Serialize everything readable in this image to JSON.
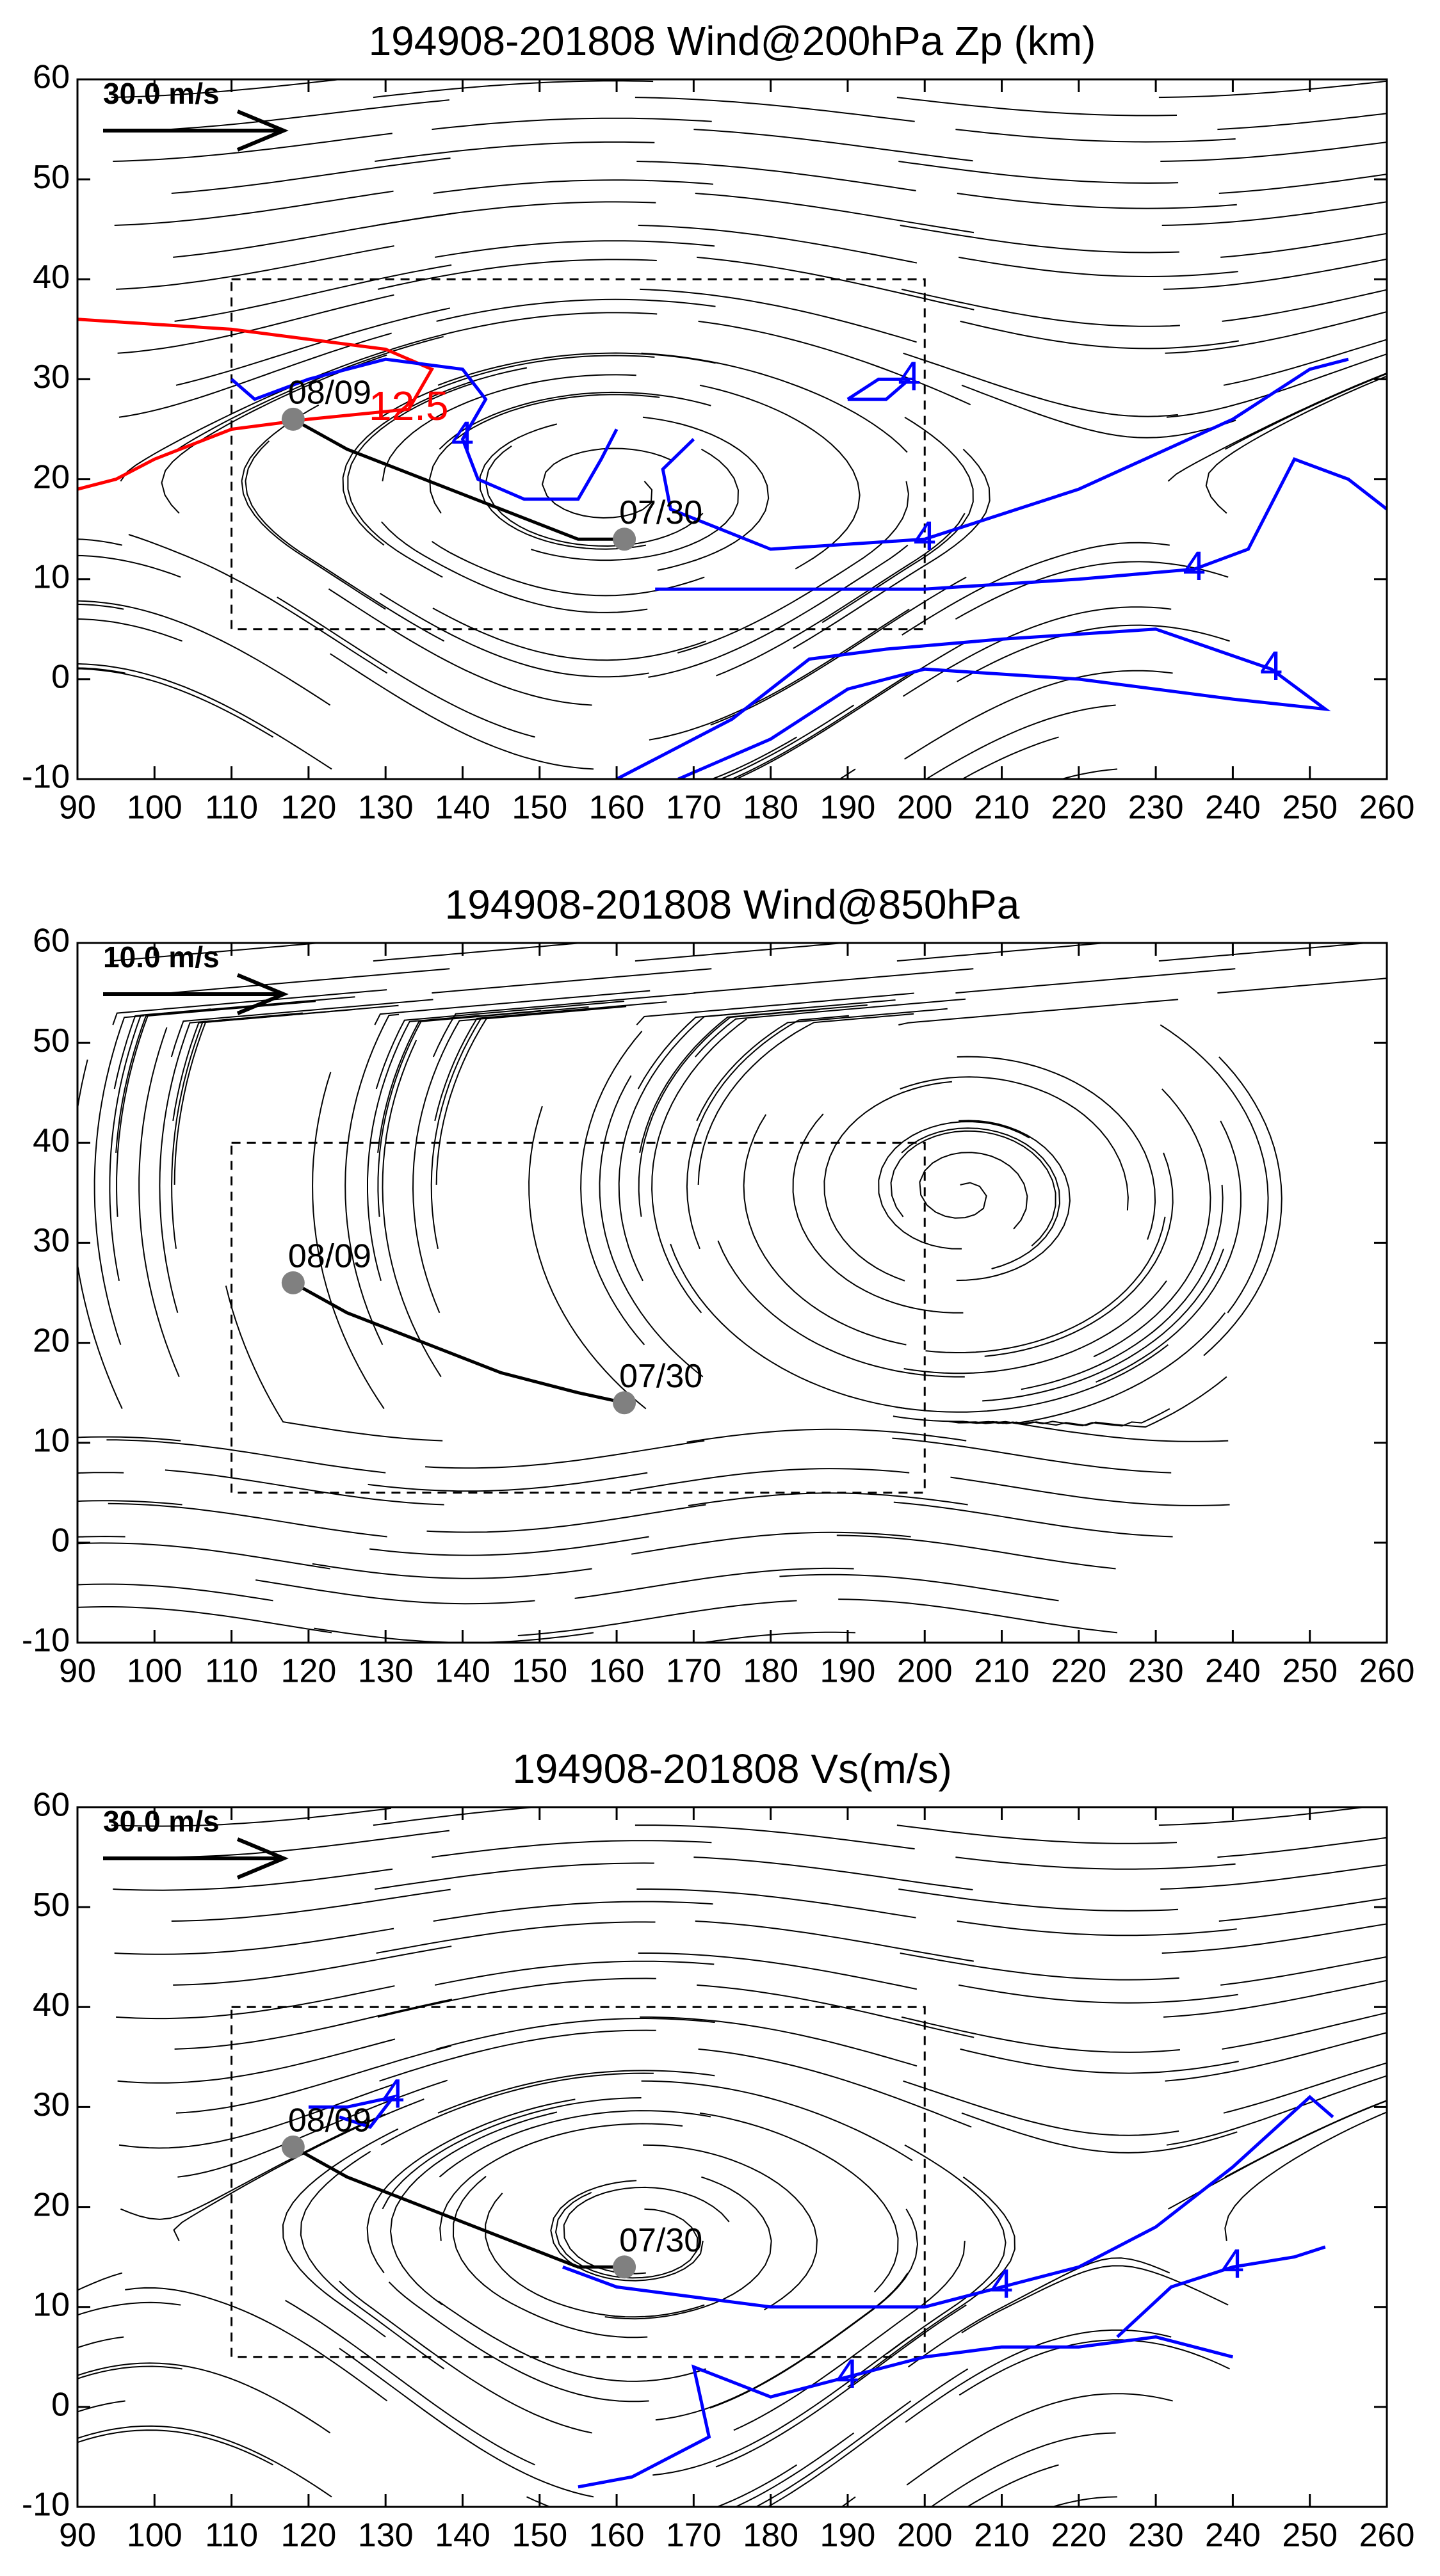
{
  "chart_data": [
    {
      "type": "vector",
      "title": "194908-201808 Wind@200hPa Zp (km)",
      "xlim": [
        90,
        260
      ],
      "xticks": [
        90,
        100,
        110,
        120,
        130,
        140,
        150,
        160,
        170,
        180,
        190,
        200,
        210,
        220,
        230,
        240,
        250,
        260
      ],
      "ylim": [
        -10,
        60
      ],
      "yticks": [
        -10,
        0,
        10,
        20,
        30,
        40,
        50,
        60
      ],
      "reference_vector": "30.0 m/s",
      "box": {
        "x": [
          110,
          200
        ],
        "y": [
          5,
          40
        ]
      },
      "track": {
        "x": [
          161,
          155,
          145,
          135,
          125,
          118
        ],
        "y": [
          14,
          14,
          17,
          20,
          23,
          26
        ],
        "labels": [
          "07/30",
          null,
          null,
          null,
          null,
          "08/09"
        ]
      },
      "contours": [
        {
          "label": "12.5",
          "color": "#ff0000",
          "x": [
            90,
            110,
            120,
            130,
            136,
            133,
            120,
            110,
            100,
            95,
            90
          ],
          "y": [
            36,
            35,
            34,
            33,
            31,
            27,
            26,
            25,
            22,
            20,
            19
          ]
        },
        {
          "label": "4",
          "color": "#0000ff",
          "x": [
            110,
            113,
            120,
            130,
            140,
            143,
            140,
            142,
            148,
            155,
            158,
            160
          ],
          "y": [
            30,
            28,
            30,
            32,
            31,
            28,
            24,
            20,
            18,
            18,
            22,
            25
          ]
        },
        {
          "label": "4",
          "color": "#0000ff",
          "x": [
            165,
            180,
            200,
            220,
            235,
            242,
            248,
            255,
            260
          ],
          "y": [
            9,
            9,
            9,
            10,
            11,
            13,
            22,
            20,
            17
          ]
        },
        {
          "label": "4",
          "color": "#0000ff",
          "x": [
            170,
            166,
            167,
            180,
            200,
            220,
            240,
            250,
            255
          ],
          "y": [
            24,
            21,
            17,
            13,
            14,
            19,
            26,
            31,
            32
          ]
        },
        {
          "label": "4",
          "color": "#0000ff",
          "x": [
            190,
            194,
            198,
            195,
            190
          ],
          "y": [
            28,
            30,
            30,
            28,
            28
          ]
        },
        {
          "label": "4",
          "color": "#0000ff",
          "x": [
            168,
            180,
            190,
            200,
            220,
            240,
            252,
            245,
            230,
            210,
            195,
            185,
            175,
            160
          ],
          "y": [
            -10,
            -6,
            -1,
            1,
            0,
            -2,
            -3,
            1,
            5,
            4,
            3,
            2,
            -4,
            -10
          ]
        }
      ]
    },
    {
      "type": "vector",
      "title": "194908-201808 Wind@850hPa",
      "xlim": [
        90,
        260
      ],
      "xticks": [
        90,
        100,
        110,
        120,
        130,
        140,
        150,
        160,
        170,
        180,
        190,
        200,
        210,
        220,
        230,
        240,
        250,
        260
      ],
      "ylim": [
        -10,
        60
      ],
      "yticks": [
        -10,
        0,
        10,
        20,
        30,
        40,
        50,
        60
      ],
      "reference_vector": "10.0 m/s",
      "box": {
        "x": [
          110,
          200
        ],
        "y": [
          5,
          40
        ]
      },
      "track": {
        "x": [
          161,
          155,
          145,
          135,
          125,
          118
        ],
        "y": [
          14,
          15,
          17,
          20,
          23,
          26
        ],
        "labels": [
          "07/30",
          null,
          null,
          null,
          null,
          "08/09"
        ]
      },
      "contours": []
    },
    {
      "type": "vector",
      "title": "194908-201808 Vs(m/s)",
      "xlim": [
        90,
        260
      ],
      "xticks": [
        90,
        100,
        110,
        120,
        130,
        140,
        150,
        160,
        170,
        180,
        190,
        200,
        210,
        220,
        230,
        240,
        250,
        260
      ],
      "ylim": [
        -10,
        60
      ],
      "yticks": [
        -10,
        0,
        10,
        20,
        30,
        40,
        50,
        60
      ],
      "reference_vector": "30.0 m/s",
      "box": {
        "x": [
          110,
          200
        ],
        "y": [
          5,
          40
        ]
      },
      "track": {
        "x": [
          161,
          155,
          145,
          135,
          125,
          118
        ],
        "y": [
          14,
          14,
          17,
          20,
          23,
          26
        ],
        "labels": [
          "07/30",
          null,
          null,
          null,
          null,
          "08/09"
        ]
      },
      "contours": [
        {
          "label": "4",
          "color": "#0000ff",
          "x": [
            120,
            125,
            131,
            128,
            124
          ],
          "y": [
            30,
            30,
            31,
            28,
            29
          ]
        },
        {
          "label": "4",
          "color": "#0000ff",
          "x": [
            153,
            160,
            170,
            180,
            190,
            200,
            210,
            220,
            230,
            240,
            250,
            253
          ],
          "y": [
            14,
            12,
            11,
            10,
            10,
            10,
            12,
            14,
            18,
            24,
            31,
            29
          ]
        },
        {
          "label": "4",
          "color": "#0000ff",
          "x": [
            155,
            162,
            172,
            170,
            180,
            190,
            200,
            210,
            220,
            230,
            240
          ],
          "y": [
            -8,
            -7,
            -3,
            4,
            1,
            3,
            5,
            6,
            6,
            7,
            5
          ]
        },
        {
          "label": "4",
          "color": "#0000ff",
          "x": [
            225,
            232,
            240,
            248,
            252
          ],
          "y": [
            7,
            12,
            14,
            15,
            16
          ]
        }
      ]
    }
  ]
}
